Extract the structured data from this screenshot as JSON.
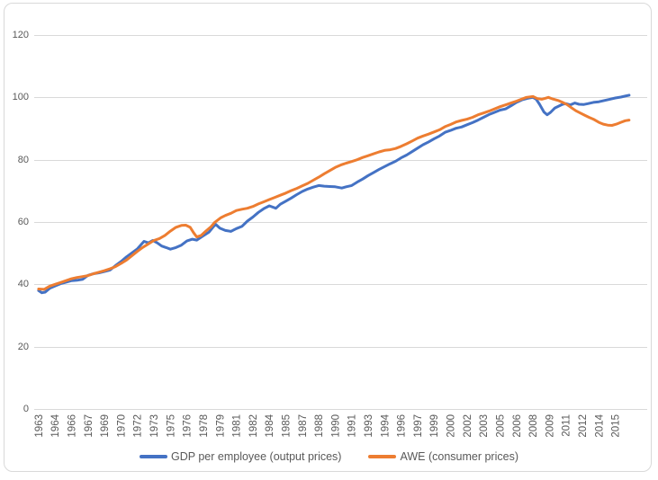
{
  "chart_data": {
    "type": "line",
    "title": "",
    "background": "#FFFFFF",
    "border_color": "#D9D9D9",
    "grid_color": "#D9D9D9",
    "axis_line_color": "#D9D9D9",
    "tick_label_color": "#595959",
    "legend_position": "bottom",
    "grid": "horizontal-only",
    "y_axis": {
      "min": 0,
      "max": 120,
      "step": 20,
      "tick_labels": [
        "0",
        "20",
        "40",
        "60",
        "80",
        "100",
        "120"
      ]
    },
    "x_axis": {
      "unit": "year (quarterly series)",
      "first_tick_year": 1963,
      "tick_interval_years": 1.5,
      "range_years": [
        1962.6,
        2018.4
      ],
      "tick_labels": [
        "1963",
        "1964",
        "1966",
        "1967",
        "1969",
        "1970",
        "1972",
        "1973",
        "1975",
        "1976",
        "1978",
        "1979",
        "1981",
        "1982",
        "1984",
        "1985",
        "1987",
        "1988",
        "1990",
        "1991",
        "1993",
        "1994",
        "1996",
        "1997",
        "1999",
        "2000",
        "2002",
        "2003",
        "2005",
        "2006",
        "2008",
        "2009",
        "2011",
        "2012",
        "2014",
        "2015"
      ]
    },
    "series": [
      {
        "name": "GDP per employee (output prices)",
        "color": "#4472C4",
        "line_width": 3,
        "points": [
          [
            1963.0,
            38.0
          ],
          [
            1963.3,
            37.3
          ],
          [
            1963.6,
            37.5
          ],
          [
            1964.0,
            38.7
          ],
          [
            1964.5,
            39.5
          ],
          [
            1965.0,
            40.2
          ],
          [
            1965.5,
            40.7
          ],
          [
            1966.0,
            41.2
          ],
          [
            1966.5,
            41.3
          ],
          [
            1967.0,
            41.6
          ],
          [
            1967.5,
            42.9
          ],
          [
            1968.0,
            43.4
          ],
          [
            1968.5,
            43.7
          ],
          [
            1969.0,
            44.1
          ],
          [
            1969.5,
            44.6
          ],
          [
            1970.0,
            46.0
          ],
          [
            1970.5,
            47.3
          ],
          [
            1971.0,
            48.8
          ],
          [
            1971.5,
            50.1
          ],
          [
            1972.0,
            51.4
          ],
          [
            1972.6,
            53.8
          ],
          [
            1973.0,
            53.3
          ],
          [
            1973.4,
            54.1
          ],
          [
            1973.8,
            53.3
          ],
          [
            1974.2,
            52.3
          ],
          [
            1974.6,
            51.8
          ],
          [
            1975.0,
            51.3
          ],
          [
            1975.5,
            51.8
          ],
          [
            1976.0,
            52.6
          ],
          [
            1976.5,
            53.9
          ],
          [
            1977.0,
            54.5
          ],
          [
            1977.4,
            54.2
          ],
          [
            1978.0,
            55.6
          ],
          [
            1978.5,
            56.7
          ],
          [
            1979.1,
            59.3
          ],
          [
            1979.5,
            58.0
          ],
          [
            1980.0,
            57.3
          ],
          [
            1980.5,
            57.0
          ],
          [
            1981.0,
            57.9
          ],
          [
            1981.5,
            58.6
          ],
          [
            1982.0,
            60.3
          ],
          [
            1982.5,
            61.6
          ],
          [
            1983.0,
            63.1
          ],
          [
            1983.5,
            64.3
          ],
          [
            1984.0,
            65.2
          ],
          [
            1984.6,
            64.4
          ],
          [
            1985.0,
            65.7
          ],
          [
            1985.5,
            66.7
          ],
          [
            1986.0,
            67.7
          ],
          [
            1986.5,
            68.8
          ],
          [
            1987.0,
            69.8
          ],
          [
            1987.5,
            70.6
          ],
          [
            1988.0,
            71.2
          ],
          [
            1988.5,
            71.7
          ],
          [
            1989.0,
            71.5
          ],
          [
            1989.5,
            71.4
          ],
          [
            1990.0,
            71.3
          ],
          [
            1990.6,
            70.9
          ],
          [
            1991.0,
            71.3
          ],
          [
            1991.5,
            71.7
          ],
          [
            1992.0,
            72.8
          ],
          [
            1992.5,
            73.8
          ],
          [
            1993.0,
            74.9
          ],
          [
            1993.5,
            75.9
          ],
          [
            1994.0,
            76.9
          ],
          [
            1994.5,
            77.8
          ],
          [
            1995.0,
            78.7
          ],
          [
            1995.5,
            79.5
          ],
          [
            1996.0,
            80.6
          ],
          [
            1996.5,
            81.5
          ],
          [
            1997.0,
            82.6
          ],
          [
            1997.5,
            83.7
          ],
          [
            1998.0,
            84.8
          ],
          [
            1998.5,
            85.7
          ],
          [
            1999.0,
            86.7
          ],
          [
            1999.5,
            87.6
          ],
          [
            2000.0,
            88.8
          ],
          [
            2000.5,
            89.4
          ],
          [
            2001.0,
            90.1
          ],
          [
            2001.5,
            90.5
          ],
          [
            2002.0,
            91.2
          ],
          [
            2002.5,
            91.9
          ],
          [
            2003.0,
            92.7
          ],
          [
            2003.5,
            93.6
          ],
          [
            2004.0,
            94.5
          ],
          [
            2004.5,
            95.2
          ],
          [
            2005.0,
            95.9
          ],
          [
            2005.5,
            96.3
          ],
          [
            2006.0,
            97.3
          ],
          [
            2006.5,
            98.4
          ],
          [
            2007.0,
            99.2
          ],
          [
            2007.5,
            99.7
          ],
          [
            2008.0,
            100.0
          ],
          [
            2008.3,
            99.4
          ],
          [
            2008.6,
            97.8
          ],
          [
            2009.0,
            95.3
          ],
          [
            2009.3,
            94.4
          ],
          [
            2009.6,
            95.2
          ],
          [
            2010.0,
            96.6
          ],
          [
            2010.3,
            97.1
          ],
          [
            2010.7,
            97.8
          ],
          [
            2011.0,
            98.0
          ],
          [
            2011.4,
            97.6
          ],
          [
            2011.8,
            98.2
          ],
          [
            2012.2,
            97.8
          ],
          [
            2012.6,
            97.7
          ],
          [
            2013.0,
            98.0
          ],
          [
            2013.5,
            98.4
          ],
          [
            2014.0,
            98.6
          ],
          [
            2014.5,
            99.0
          ],
          [
            2015.0,
            99.4
          ],
          [
            2015.5,
            99.8
          ],
          [
            2016.0,
            100.1
          ],
          [
            2016.4,
            100.4
          ],
          [
            2016.75,
            100.7
          ]
        ]
      },
      {
        "name": "AWE (consumer prices)",
        "color": "#ED7D31",
        "line_width": 3,
        "points": [
          [
            1963.0,
            38.5
          ],
          [
            1963.5,
            38.4
          ],
          [
            1964.0,
            39.4
          ],
          [
            1964.5,
            40.0
          ],
          [
            1965.0,
            40.6
          ],
          [
            1965.5,
            41.2
          ],
          [
            1966.0,
            41.8
          ],
          [
            1966.5,
            42.2
          ],
          [
            1967.0,
            42.5
          ],
          [
            1967.5,
            42.8
          ],
          [
            1968.0,
            43.4
          ],
          [
            1968.5,
            43.9
          ],
          [
            1969.0,
            44.4
          ],
          [
            1969.5,
            45.0
          ],
          [
            1970.0,
            45.7
          ],
          [
            1970.5,
            46.7
          ],
          [
            1971.0,
            47.8
          ],
          [
            1971.5,
            49.2
          ],
          [
            1972.0,
            50.6
          ],
          [
            1972.5,
            51.9
          ],
          [
            1973.0,
            53.0
          ],
          [
            1973.5,
            54.1
          ],
          [
            1974.0,
            54.7
          ],
          [
            1974.5,
            55.7
          ],
          [
            1975.0,
            57.1
          ],
          [
            1975.5,
            58.3
          ],
          [
            1976.0,
            58.9
          ],
          [
            1976.4,
            59.0
          ],
          [
            1976.8,
            58.3
          ],
          [
            1977.1,
            56.6
          ],
          [
            1977.4,
            55.2
          ],
          [
            1977.8,
            55.7
          ],
          [
            1978.2,
            57.0
          ],
          [
            1978.7,
            58.5
          ],
          [
            1979.0,
            59.8
          ],
          [
            1979.6,
            61.4
          ],
          [
            1980.0,
            62.1
          ],
          [
            1980.5,
            62.8
          ],
          [
            1981.0,
            63.7
          ],
          [
            1981.5,
            64.1
          ],
          [
            1982.0,
            64.4
          ],
          [
            1982.5,
            65.0
          ],
          [
            1983.0,
            65.8
          ],
          [
            1983.5,
            66.5
          ],
          [
            1984.0,
            67.2
          ],
          [
            1984.5,
            67.9
          ],
          [
            1985.0,
            68.6
          ],
          [
            1985.5,
            69.3
          ],
          [
            1986.0,
            70.1
          ],
          [
            1986.5,
            70.8
          ],
          [
            1987.0,
            71.6
          ],
          [
            1987.5,
            72.4
          ],
          [
            1988.0,
            73.4
          ],
          [
            1988.5,
            74.4
          ],
          [
            1989.0,
            75.5
          ],
          [
            1989.5,
            76.5
          ],
          [
            1990.0,
            77.5
          ],
          [
            1990.5,
            78.3
          ],
          [
            1991.0,
            78.9
          ],
          [
            1991.5,
            79.4
          ],
          [
            1992.0,
            80.0
          ],
          [
            1992.5,
            80.7
          ],
          [
            1993.0,
            81.3
          ],
          [
            1993.5,
            81.9
          ],
          [
            1994.0,
            82.5
          ],
          [
            1994.5,
            83.0
          ],
          [
            1995.0,
            83.2
          ],
          [
            1995.5,
            83.6
          ],
          [
            1996.0,
            84.3
          ],
          [
            1996.5,
            85.1
          ],
          [
            1997.0,
            86.0
          ],
          [
            1997.5,
            86.9
          ],
          [
            1998.0,
            87.6
          ],
          [
            1998.5,
            88.2
          ],
          [
            1999.0,
            88.9
          ],
          [
            1999.5,
            89.6
          ],
          [
            2000.0,
            90.6
          ],
          [
            2000.5,
            91.3
          ],
          [
            2001.0,
            92.1
          ],
          [
            2001.5,
            92.6
          ],
          [
            2002.0,
            93.0
          ],
          [
            2002.5,
            93.6
          ],
          [
            2003.0,
            94.4
          ],
          [
            2003.5,
            95.0
          ],
          [
            2004.0,
            95.6
          ],
          [
            2004.5,
            96.3
          ],
          [
            2005.0,
            97.0
          ],
          [
            2005.5,
            97.6
          ],
          [
            2006.0,
            98.2
          ],
          [
            2006.5,
            98.8
          ],
          [
            2007.0,
            99.5
          ],
          [
            2007.4,
            100.0
          ],
          [
            2008.0,
            100.3
          ],
          [
            2008.4,
            99.6
          ],
          [
            2008.8,
            99.4
          ],
          [
            2009.1,
            99.7
          ],
          [
            2009.4,
            100.0
          ],
          [
            2009.8,
            99.5
          ],
          [
            2010.3,
            99.0
          ],
          [
            2010.7,
            98.4
          ],
          [
            2011.1,
            97.7
          ],
          [
            2011.5,
            96.7
          ],
          [
            2011.9,
            95.7
          ],
          [
            2012.3,
            95.0
          ],
          [
            2012.7,
            94.3
          ],
          [
            2013.1,
            93.6
          ],
          [
            2013.5,
            93.0
          ],
          [
            2014.0,
            92.0
          ],
          [
            2014.4,
            91.4
          ],
          [
            2014.8,
            91.1
          ],
          [
            2015.2,
            91.0
          ],
          [
            2015.6,
            91.4
          ],
          [
            2016.0,
            92.0
          ],
          [
            2016.4,
            92.5
          ],
          [
            2016.75,
            92.7
          ]
        ]
      }
    ]
  }
}
